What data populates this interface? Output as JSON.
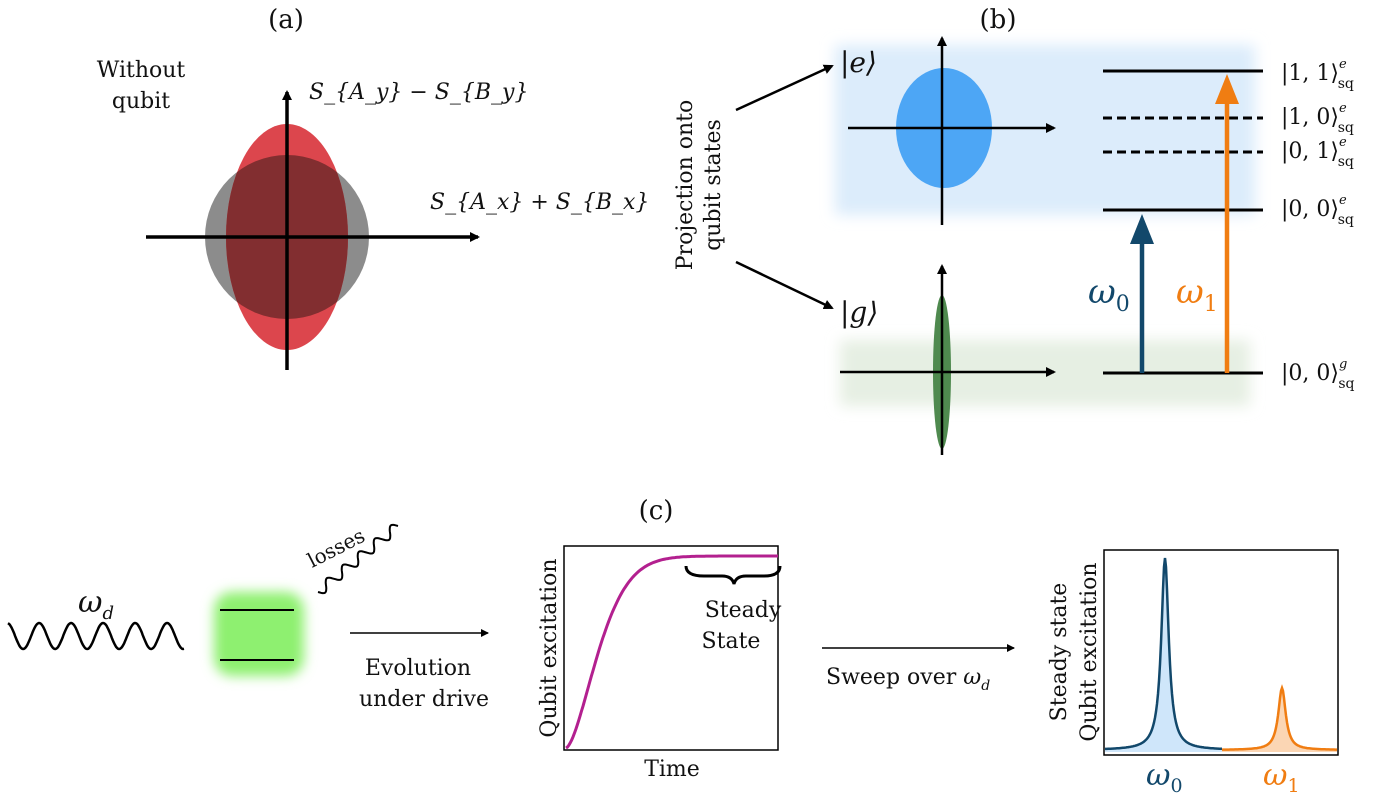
{
  "panel_a": {
    "label": "(a)",
    "without_line1": "Without",
    "without_line2": "qubit",
    "y_axis": "S_{A_y} − S_{B_y}",
    "x_axis": "S_{A_x} + S_{B_x}",
    "colors": {
      "circle": "#8c8c8c",
      "squeezed": "#d9363e"
    }
  },
  "panel_b": {
    "label": "(b)",
    "projection_line1": "Projection onto",
    "projection_line2": "qubit states",
    "ket_e": "|e⟩",
    "ket_g": "|g⟩",
    "levels": [
      {
        "ket": "|1, 1⟩",
        "sup": "e",
        "sub": "sq",
        "style": "solid"
      },
      {
        "ket": "|1, 0⟩",
        "sup": "e",
        "sub": "sq",
        "style": "dashed"
      },
      {
        "ket": "|0, 1⟩",
        "sup": "e",
        "sub": "sq",
        "style": "dashed"
      },
      {
        "ket": "|0, 0⟩",
        "sup": "e",
        "sub": "sq",
        "style": "solid"
      },
      {
        "ket": "|0, 0⟩",
        "sup": "g",
        "sub": "sq",
        "style": "solid"
      }
    ],
    "omega0": "ω",
    "omega0_sub": "0",
    "omega1": "ω",
    "omega1_sub": "1",
    "colors": {
      "omega0": "#12486b",
      "omega1": "#f07d12",
      "excited_band": "#dcecfb",
      "ground_band": "#e6efe3",
      "blob_e": "#4da6f5",
      "blob_g": "#4f8a4f"
    }
  },
  "panel_c": {
    "label": "(c)",
    "omega_d": "ω",
    "omega_d_sub": "d",
    "losses": "losses",
    "evolution_line1": "Evolution",
    "evolution_line2": "under drive",
    "plot1": {
      "ylabel": "Qubit excitation",
      "xlabel": "Time",
      "steady_line1": "Steady",
      "steady_line2": "State"
    },
    "sweep_label": "Sweep over ",
    "sweep_sym": "ω",
    "sweep_sub": "d",
    "plot2": {
      "ylabel_line1": "Steady state",
      "ylabel_line2": "Qubit excitation",
      "tick0": "ω",
      "tick0_sub": "0",
      "tick1": "ω",
      "tick1_sub": "1"
    },
    "colors": {
      "curve": "#b3208f",
      "peak0": "#12486b",
      "peak1": "#f07d12",
      "glow": "#8ef070"
    }
  }
}
